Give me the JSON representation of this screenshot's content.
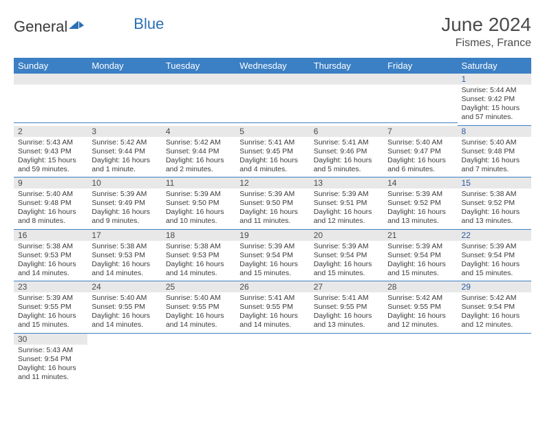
{
  "logo": {
    "text1": "General",
    "text2": "Blue"
  },
  "title": "June 2024",
  "subtitle": "Fismes, France",
  "headers": [
    "Sunday",
    "Monday",
    "Tuesday",
    "Wednesday",
    "Thursday",
    "Friday",
    "Saturday"
  ],
  "colors": {
    "header_bg": "#3b7fc4",
    "header_fg": "#ffffff",
    "daynum_bg": "#e8e8e8",
    "border": "#3b7fc4",
    "saturday_fg": "#2b5a9c",
    "body_text": "#3a3a3a"
  },
  "weeks": [
    [
      {
        "blank": true
      },
      {
        "blank": true
      },
      {
        "blank": true
      },
      {
        "blank": true
      },
      {
        "blank": true
      },
      {
        "blank": true
      },
      {
        "n": "1",
        "sunrise": "Sunrise: 5:44 AM",
        "sunset": "Sunset: 9:42 PM",
        "daylight": "Daylight: 15 hours and 57 minutes."
      }
    ],
    [
      {
        "n": "2",
        "sunrise": "Sunrise: 5:43 AM",
        "sunset": "Sunset: 9:43 PM",
        "daylight": "Daylight: 15 hours and 59 minutes."
      },
      {
        "n": "3",
        "sunrise": "Sunrise: 5:42 AM",
        "sunset": "Sunset: 9:44 PM",
        "daylight": "Daylight: 16 hours and 1 minute."
      },
      {
        "n": "4",
        "sunrise": "Sunrise: 5:42 AM",
        "sunset": "Sunset: 9:44 PM",
        "daylight": "Daylight: 16 hours and 2 minutes."
      },
      {
        "n": "5",
        "sunrise": "Sunrise: 5:41 AM",
        "sunset": "Sunset: 9:45 PM",
        "daylight": "Daylight: 16 hours and 4 minutes."
      },
      {
        "n": "6",
        "sunrise": "Sunrise: 5:41 AM",
        "sunset": "Sunset: 9:46 PM",
        "daylight": "Daylight: 16 hours and 5 minutes."
      },
      {
        "n": "7",
        "sunrise": "Sunrise: 5:40 AM",
        "sunset": "Sunset: 9:47 PM",
        "daylight": "Daylight: 16 hours and 6 minutes."
      },
      {
        "n": "8",
        "sunrise": "Sunrise: 5:40 AM",
        "sunset": "Sunset: 9:48 PM",
        "daylight": "Daylight: 16 hours and 7 minutes."
      }
    ],
    [
      {
        "n": "9",
        "sunrise": "Sunrise: 5:40 AM",
        "sunset": "Sunset: 9:48 PM",
        "daylight": "Daylight: 16 hours and 8 minutes."
      },
      {
        "n": "10",
        "sunrise": "Sunrise: 5:39 AM",
        "sunset": "Sunset: 9:49 PM",
        "daylight": "Daylight: 16 hours and 9 minutes."
      },
      {
        "n": "11",
        "sunrise": "Sunrise: 5:39 AM",
        "sunset": "Sunset: 9:50 PM",
        "daylight": "Daylight: 16 hours and 10 minutes."
      },
      {
        "n": "12",
        "sunrise": "Sunrise: 5:39 AM",
        "sunset": "Sunset: 9:50 PM",
        "daylight": "Daylight: 16 hours and 11 minutes."
      },
      {
        "n": "13",
        "sunrise": "Sunrise: 5:39 AM",
        "sunset": "Sunset: 9:51 PM",
        "daylight": "Daylight: 16 hours and 12 minutes."
      },
      {
        "n": "14",
        "sunrise": "Sunrise: 5:39 AM",
        "sunset": "Sunset: 9:52 PM",
        "daylight": "Daylight: 16 hours and 13 minutes."
      },
      {
        "n": "15",
        "sunrise": "Sunrise: 5:38 AM",
        "sunset": "Sunset: 9:52 PM",
        "daylight": "Daylight: 16 hours and 13 minutes."
      }
    ],
    [
      {
        "n": "16",
        "sunrise": "Sunrise: 5:38 AM",
        "sunset": "Sunset: 9:53 PM",
        "daylight": "Daylight: 16 hours and 14 minutes."
      },
      {
        "n": "17",
        "sunrise": "Sunrise: 5:38 AM",
        "sunset": "Sunset: 9:53 PM",
        "daylight": "Daylight: 16 hours and 14 minutes."
      },
      {
        "n": "18",
        "sunrise": "Sunrise: 5:38 AM",
        "sunset": "Sunset: 9:53 PM",
        "daylight": "Daylight: 16 hours and 14 minutes."
      },
      {
        "n": "19",
        "sunrise": "Sunrise: 5:39 AM",
        "sunset": "Sunset: 9:54 PM",
        "daylight": "Daylight: 16 hours and 15 minutes."
      },
      {
        "n": "20",
        "sunrise": "Sunrise: 5:39 AM",
        "sunset": "Sunset: 9:54 PM",
        "daylight": "Daylight: 16 hours and 15 minutes."
      },
      {
        "n": "21",
        "sunrise": "Sunrise: 5:39 AM",
        "sunset": "Sunset: 9:54 PM",
        "daylight": "Daylight: 16 hours and 15 minutes."
      },
      {
        "n": "22",
        "sunrise": "Sunrise: 5:39 AM",
        "sunset": "Sunset: 9:54 PM",
        "daylight": "Daylight: 16 hours and 15 minutes."
      }
    ],
    [
      {
        "n": "23",
        "sunrise": "Sunrise: 5:39 AM",
        "sunset": "Sunset: 9:55 PM",
        "daylight": "Daylight: 16 hours and 15 minutes."
      },
      {
        "n": "24",
        "sunrise": "Sunrise: 5:40 AM",
        "sunset": "Sunset: 9:55 PM",
        "daylight": "Daylight: 16 hours and 14 minutes."
      },
      {
        "n": "25",
        "sunrise": "Sunrise: 5:40 AM",
        "sunset": "Sunset: 9:55 PM",
        "daylight": "Daylight: 16 hours and 14 minutes."
      },
      {
        "n": "26",
        "sunrise": "Sunrise: 5:41 AM",
        "sunset": "Sunset: 9:55 PM",
        "daylight": "Daylight: 16 hours and 14 minutes."
      },
      {
        "n": "27",
        "sunrise": "Sunrise: 5:41 AM",
        "sunset": "Sunset: 9:55 PM",
        "daylight": "Daylight: 16 hours and 13 minutes."
      },
      {
        "n": "28",
        "sunrise": "Sunrise: 5:42 AM",
        "sunset": "Sunset: 9:55 PM",
        "daylight": "Daylight: 16 hours and 12 minutes."
      },
      {
        "n": "29",
        "sunrise": "Sunrise: 5:42 AM",
        "sunset": "Sunset: 9:54 PM",
        "daylight": "Daylight: 16 hours and 12 minutes."
      }
    ],
    [
      {
        "n": "30",
        "sunrise": "Sunrise: 5:43 AM",
        "sunset": "Sunset: 9:54 PM",
        "daylight": "Daylight: 16 hours and 11 minutes."
      },
      {
        "empty": true
      },
      {
        "empty": true
      },
      {
        "empty": true
      },
      {
        "empty": true
      },
      {
        "empty": true
      },
      {
        "empty": true
      }
    ]
  ]
}
